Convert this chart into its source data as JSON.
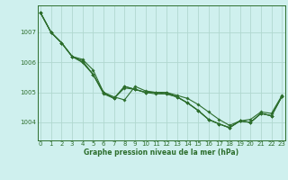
{
  "background_color": "#cff0ee",
  "grid_color": "#b0d8d0",
  "line_color": "#2d6e2d",
  "xlabel": "Graphe pression niveau de la mer (hPa)",
  "ylim": [
    1003.4,
    1007.9
  ],
  "xlim": [
    -0.3,
    23.3
  ],
  "yticks": [
    1004,
    1005,
    1006,
    1007
  ],
  "xticks": [
    0,
    1,
    2,
    3,
    4,
    5,
    6,
    7,
    8,
    9,
    10,
    11,
    12,
    13,
    14,
    15,
    16,
    17,
    18,
    19,
    20,
    21,
    22,
    23
  ],
  "series": [
    [
      1007.65,
      1007.0,
      1006.65,
      1006.2,
      1006.1,
      1005.75,
      1005.0,
      1004.85,
      1004.75,
      1005.2,
      1005.05,
      1005.0,
      1005.0,
      1004.9,
      1004.8,
      1004.6,
      1004.35,
      1004.1,
      1003.9,
      1004.05,
      1004.1,
      1004.35,
      1004.3,
      1004.9
    ],
    [
      1007.65,
      1007.0,
      1006.65,
      1006.2,
      1006.0,
      1005.6,
      1004.95,
      1004.8,
      1005.15,
      1005.1,
      1005.0,
      1004.95,
      1004.95,
      1004.85,
      1004.65,
      1004.4,
      1004.1,
      1003.95,
      1003.83,
      1004.05,
      1004.0,
      1004.3,
      1004.22,
      1004.87
    ],
    [
      1007.65,
      1007.0,
      1006.65,
      1006.2,
      1006.0,
      1005.6,
      1005.0,
      1004.8,
      1005.2,
      1005.1,
      1005.0,
      1005.0,
      1005.0,
      1004.85,
      1004.65,
      1004.4,
      1004.1,
      1003.95,
      1003.82,
      1004.05,
      1004.0,
      1004.3,
      1004.22,
      1004.87
    ],
    [
      1007.65,
      1007.0,
      1006.65,
      1006.2,
      1006.05,
      1005.6,
      1005.0,
      1004.8,
      1005.2,
      1005.1,
      1005.0,
      1005.0,
      1004.95,
      1004.85,
      1004.65,
      1004.4,
      1004.1,
      1003.95,
      1003.82,
      1004.05,
      1004.0,
      1004.3,
      1004.22,
      1004.87
    ]
  ]
}
